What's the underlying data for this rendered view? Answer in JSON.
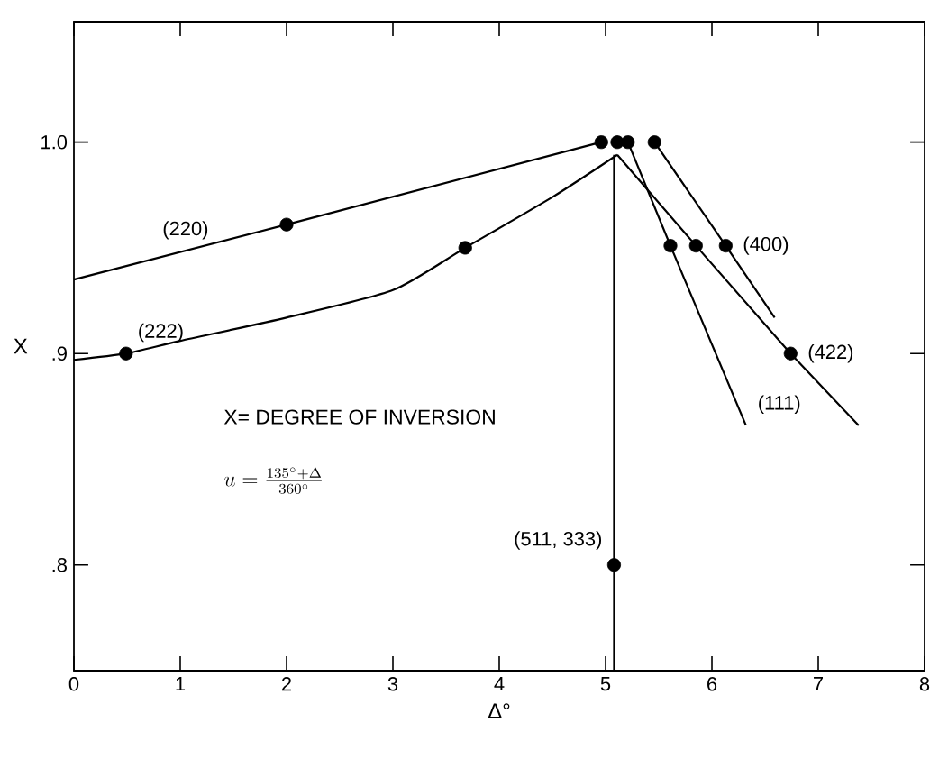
{
  "chart_data": {
    "type": "line",
    "xlabel": "Δ°",
    "ylabel": "X",
    "xlim": [
      0,
      8
    ],
    "ylim": [
      0.75,
      1.057
    ],
    "xticks": [
      0,
      1,
      2,
      3,
      4,
      5,
      6,
      7,
      8
    ],
    "yticks": [
      {
        "value": 0.8,
        "label": ".8"
      },
      {
        "value": 0.9,
        "label": ".9"
      },
      {
        "value": 1.0,
        "label": "1.0"
      }
    ],
    "grid": false,
    "marker": "none",
    "line_style": "solid",
    "annotations": [
      "X= DEGREE OF INVERSION",
      "u=\\frac{135^\\circ+\\Delta}{360^\\circ}"
    ],
    "series": [
      {
        "name": "(220)",
        "color": "#000000",
        "x": [
          0,
          2,
          4.96
        ],
        "values": [
          0.935,
          0.961,
          1.0
        ]
      },
      {
        "name": "(222)",
        "color": "#000000",
        "x": [
          0,
          0.49,
          1,
          2,
          3,
          3.68,
          4.5,
          5.11
        ],
        "values": [
          0.897,
          0.9,
          0.906,
          0.917,
          0.93,
          0.95,
          0.974,
          0.994
        ]
      },
      {
        "name": "(400)",
        "color": "#000000",
        "x": [
          5.46,
          6.13,
          6.59
        ],
        "values": [
          1.0,
          0.951,
          0.917
        ]
      },
      {
        "name": "(422)",
        "color": "#000000",
        "x": [
          5.11,
          5.85,
          6.74,
          7.38
        ],
        "values": [
          0.994,
          0.951,
          0.9,
          0.866
        ]
      },
      {
        "name": "(111)",
        "color": "#000000",
        "x": [
          5.21,
          5.61,
          6.32
        ],
        "values": [
          1.0,
          0.951,
          0.866
        ]
      },
      {
        "name": "(511, 333)",
        "color": "#000000",
        "x": [
          5.08,
          5.08,
          5.08
        ],
        "values": [
          0.994,
          0.8,
          0.75
        ]
      },
      {
        "type": "scatter",
        "marker": "circle",
        "color": "#000000",
        "x": [
          0.49,
          2,
          3.68,
          4.96,
          5.11,
          5.21,
          5.46,
          5.61,
          5.85,
          6.13,
          6.74,
          5.08
        ],
        "values": [
          0.9,
          0.961,
          0.95,
          1.0,
          1.0,
          1.0,
          1.0,
          0.951,
          0.951,
          0.951,
          0.9,
          0.8
        ]
      }
    ]
  }
}
